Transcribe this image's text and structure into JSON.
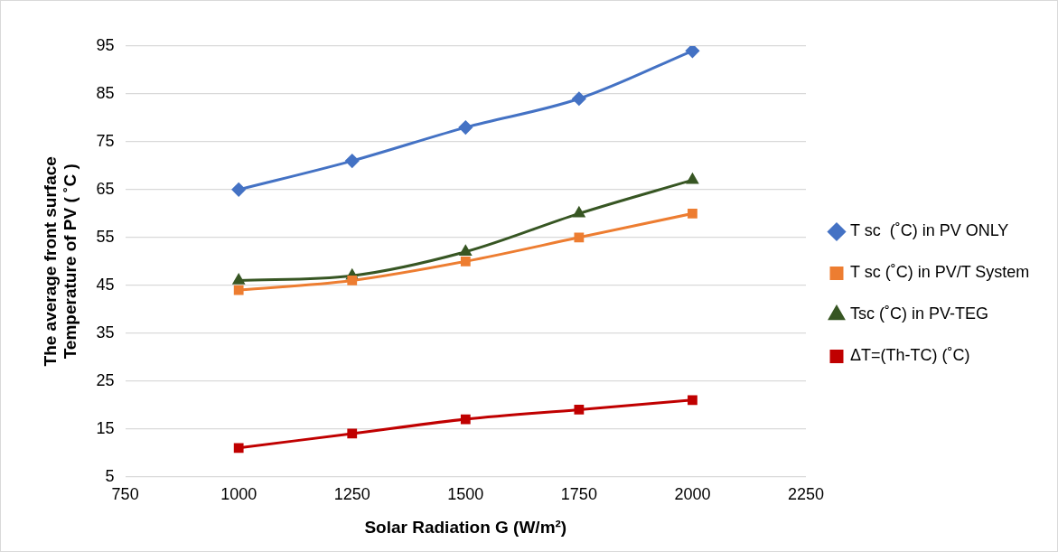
{
  "chart_data": {
    "type": "line",
    "xlabel": "Solar Radiation G (W/m²)",
    "ylabel": "The average front surface Temperature of PV ( ˚C )",
    "x": [
      1000,
      1250,
      1500,
      1750,
      2000
    ],
    "series": [
      {
        "name": "T sc  (˚C) in PV ONLY",
        "color": "#4472c4",
        "marker": "diamond",
        "values": [
          65,
          71,
          78,
          84,
          94
        ]
      },
      {
        "name": "T sc (˚C) in PV/T System",
        "color": "#ed7d31",
        "marker": "square",
        "values": [
          44,
          46,
          50,
          55,
          60
        ]
      },
      {
        "name": "Tsc (˚C) in PV-TEG",
        "color": "#375623",
        "marker": "triangle",
        "values": [
          46,
          47,
          52,
          60,
          67
        ]
      },
      {
        "name": "ΔT=(Th-TC) (˚C)",
        "color": "#c00000",
        "marker": "square",
        "values": [
          11,
          14,
          17,
          19,
          21
        ]
      }
    ],
    "xlim": [
      750,
      2250
    ],
    "xticks": [
      750,
      1000,
      1250,
      1500,
      1750,
      2000,
      2250
    ],
    "ylim": [
      5,
      95
    ],
    "yticks": [
      5,
      15,
      25,
      35,
      45,
      55,
      65,
      75,
      85,
      95
    ],
    "grid": "y",
    "legend": "right",
    "line_style": "solid"
  }
}
